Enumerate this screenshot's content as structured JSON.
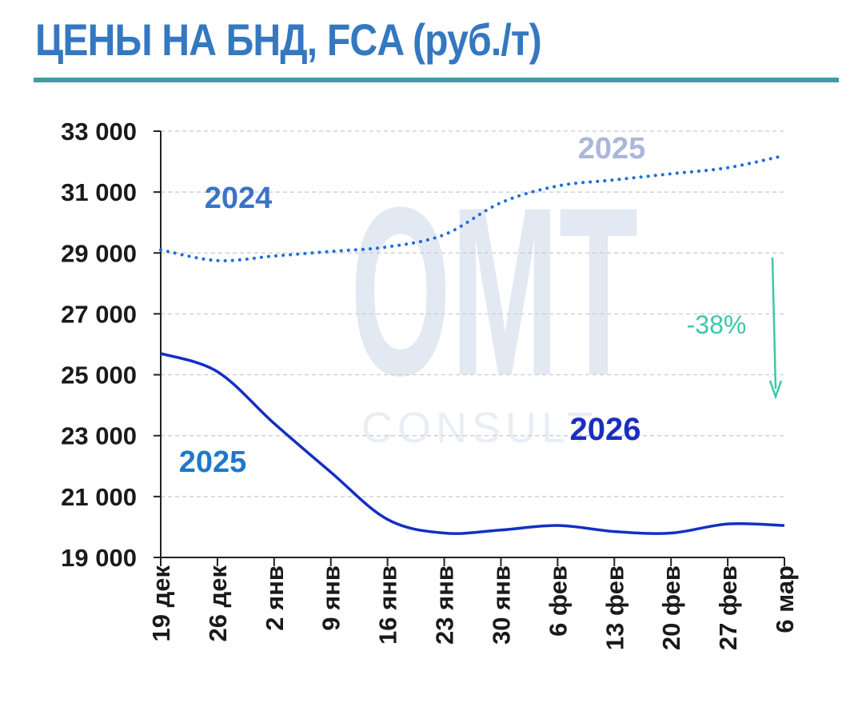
{
  "title": "ЦЕНЫ НА БНД, FCA (руб./т)",
  "colors": {
    "title": "#3478c0",
    "rule": "#3d9da3",
    "series_2024_2025": "#1e6fd9",
    "series_2025_2026": "#1230c4",
    "annotation": "#3cc7a8",
    "watermark": "#dde6f1"
  },
  "chart_data": {
    "type": "line",
    "categories": [
      "19 дек",
      "26 дек",
      "2 янв",
      "9 янв",
      "16 янв",
      "23 янв",
      "30 янв",
      "6 фев",
      "13 фев",
      "20 фев",
      "27 фев",
      "6 мар"
    ],
    "ylim": [
      19000,
      33000
    ],
    "yticks": [
      19000,
      21000,
      23000,
      25000,
      27000,
      29000,
      31000,
      33000
    ],
    "ytick_labels": [
      "19 000",
      "21 000",
      "23 000",
      "25 000",
      "27 000",
      "29 000",
      "31 000",
      "33 000"
    ],
    "grid": true,
    "series": [
      {
        "style": "dotted",
        "color": "#1e6fd9",
        "values": [
          29100,
          28750,
          28900,
          29050,
          29200,
          29600,
          30650,
          31200,
          31400,
          31600,
          31800,
          32200
        ]
      },
      {
        "style": "solid",
        "color": "#1230c4",
        "values": [
          25700,
          25100,
          23400,
          21800,
          20250,
          19800,
          19900,
          20050,
          19850,
          19800,
          20100,
          20050
        ]
      }
    ],
    "annotations": {
      "label_2024": "2024",
      "label_2025_top": "2025",
      "label_2025_bottom": "2025",
      "label_2026": "2026",
      "change": "-38%"
    }
  }
}
